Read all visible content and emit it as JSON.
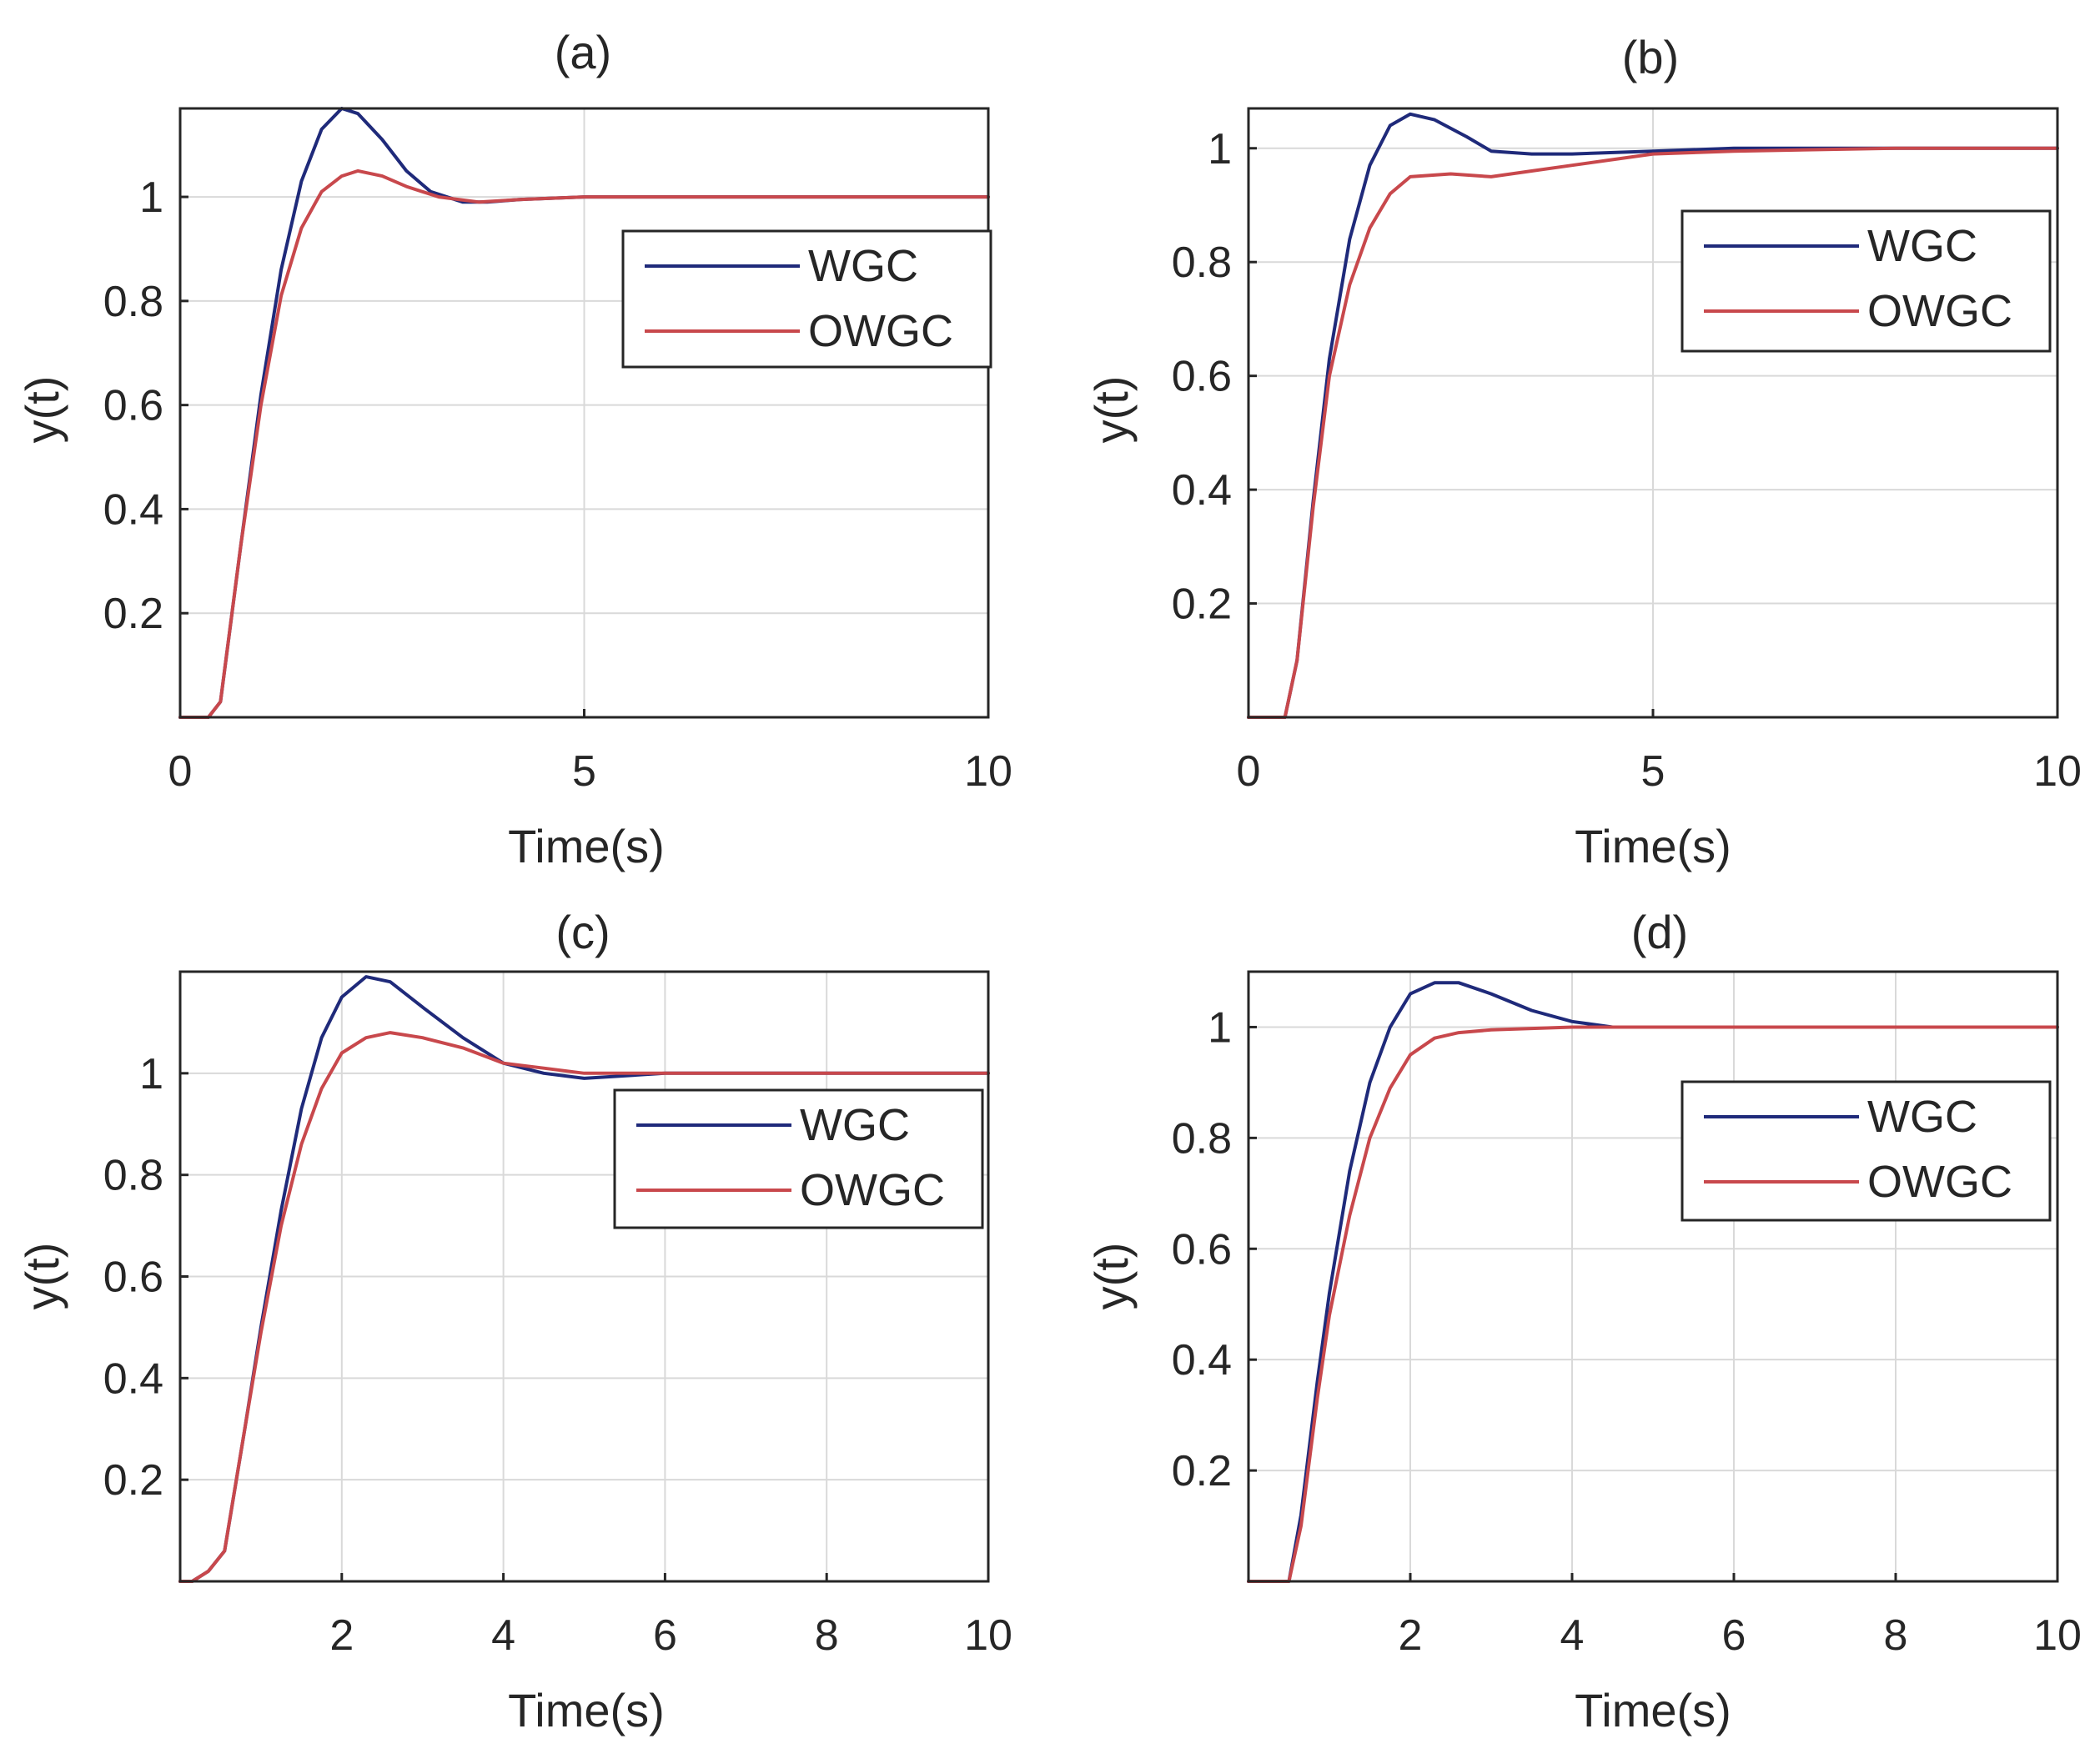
{
  "chart_data": [
    {
      "type": "line",
      "title": "(a)",
      "xlabel": "Time(s)",
      "ylabel": "y(t)",
      "xlim": [
        0,
        10
      ],
      "ylim": [
        0,
        1.17
      ],
      "xticks": [
        0,
        5,
        10
      ],
      "xtick_labels": [
        "0",
        "5",
        "10"
      ],
      "yticks": [
        0.2,
        0.4,
        0.6,
        0.8,
        1
      ],
      "ytick_labels": [
        "0.2",
        "0.4",
        "0.6",
        "0.8",
        "1"
      ],
      "grid": true,
      "legend": "upper-right",
      "series": [
        {
          "name": "WGC",
          "color": "#1f2a7a",
          "x": [
            0,
            0.35,
            0.5,
            0.75,
            1.0,
            1.25,
            1.5,
            1.75,
            2.0,
            2.2,
            2.5,
            2.8,
            3.1,
            3.5,
            3.8,
            4.2,
            5.0,
            6.0,
            8.0,
            10.0
          ],
          "y": [
            0,
            0,
            0.03,
            0.33,
            0.62,
            0.86,
            1.03,
            1.13,
            1.17,
            1.16,
            1.11,
            1.05,
            1.01,
            0.99,
            0.99,
            0.995,
            1.0,
            1.0,
            1.0,
            1.0
          ]
        },
        {
          "name": "OWGC",
          "color": "#c8484c",
          "x": [
            0,
            0.35,
            0.5,
            0.75,
            1.0,
            1.25,
            1.5,
            1.75,
            2.0,
            2.2,
            2.5,
            2.8,
            3.2,
            3.7,
            4.2,
            5.0,
            6.0,
            8.0,
            10.0
          ],
          "y": [
            0,
            0,
            0.03,
            0.33,
            0.6,
            0.81,
            0.94,
            1.01,
            1.04,
            1.05,
            1.04,
            1.02,
            1.0,
            0.99,
            0.995,
            1.0,
            1.0,
            1.0,
            1.0
          ]
        }
      ]
    },
    {
      "type": "line",
      "title": "(b)",
      "xlabel": "Time(s)",
      "ylabel": "y(t)",
      "xlim": [
        0,
        10
      ],
      "ylim": [
        0,
        1.07
      ],
      "xticks": [
        0,
        5,
        10
      ],
      "xtick_labels": [
        "0",
        "5",
        "10"
      ],
      "yticks": [
        0.2,
        0.4,
        0.6,
        0.8,
        1
      ],
      "ytick_labels": [
        "0.2",
        "0.4",
        "0.6",
        "0.8",
        "1"
      ],
      "grid": true,
      "legend": "upper-right",
      "series": [
        {
          "name": "WGC",
          "color": "#1f2a7a",
          "x": [
            0,
            0.45,
            0.6,
            0.8,
            1.0,
            1.25,
            1.5,
            1.75,
            2.0,
            2.3,
            2.7,
            3.0,
            3.5,
            4.0,
            5.0,
            6.0,
            8.0,
            10.0
          ],
          "y": [
            0,
            0,
            0.1,
            0.38,
            0.63,
            0.84,
            0.97,
            1.04,
            1.06,
            1.05,
            1.02,
            0.995,
            0.99,
            0.99,
            0.995,
            1.0,
            1.0,
            1.0
          ]
        },
        {
          "name": "OWGC",
          "color": "#c8484c",
          "x": [
            0,
            0.45,
            0.6,
            0.8,
            1.0,
            1.25,
            1.5,
            1.75,
            2.0,
            2.5,
            3.0,
            3.5,
            4.0,
            4.5,
            5.0,
            6.0,
            8.0,
            10.0
          ],
          "y": [
            0,
            0,
            0.1,
            0.37,
            0.6,
            0.76,
            0.86,
            0.92,
            0.95,
            0.955,
            0.95,
            0.96,
            0.97,
            0.98,
            0.99,
            0.995,
            1.0,
            1.0
          ]
        }
      ]
    },
    {
      "type": "line",
      "title": "(c)",
      "xlabel": "Time(s)",
      "ylabel": "y(t)",
      "xlim": [
        0,
        10
      ],
      "ylim": [
        0,
        1.2
      ],
      "xticks": [
        2,
        4,
        6,
        8,
        10
      ],
      "xtick_labels": [
        "2",
        "4",
        "6",
        "8",
        "10"
      ],
      "yticks": [
        0.2,
        0.4,
        0.6,
        0.8,
        1
      ],
      "ytick_labels": [
        "0.2",
        "0.4",
        "0.6",
        "0.8",
        "1"
      ],
      "grid": true,
      "legend": "upper-right",
      "series": [
        {
          "name": "WGC",
          "color": "#1f2a7a",
          "x": [
            0,
            0.15,
            0.35,
            0.55,
            0.8,
            1.0,
            1.25,
            1.5,
            1.75,
            2.0,
            2.3,
            2.6,
            3.0,
            3.5,
            4.0,
            4.5,
            5.0,
            6.0,
            8.0,
            10.0
          ],
          "y": [
            0,
            0.0,
            0.02,
            0.06,
            0.3,
            0.5,
            0.73,
            0.93,
            1.07,
            1.15,
            1.19,
            1.18,
            1.13,
            1.07,
            1.02,
            1.0,
            0.99,
            1.0,
            1.0,
            1.0
          ]
        },
        {
          "name": "OWGC",
          "color": "#c8484c",
          "x": [
            0,
            0.15,
            0.35,
            0.55,
            0.8,
            1.0,
            1.25,
            1.5,
            1.75,
            2.0,
            2.3,
            2.6,
            3.0,
            3.5,
            4.0,
            4.5,
            5.0,
            6.0,
            8.0,
            10.0
          ],
          "y": [
            0,
            0.0,
            0.02,
            0.06,
            0.3,
            0.49,
            0.7,
            0.86,
            0.97,
            1.04,
            1.07,
            1.08,
            1.07,
            1.05,
            1.02,
            1.01,
            1.0,
            1.0,
            1.0,
            1.0
          ]
        }
      ]
    },
    {
      "type": "line",
      "title": "(d)",
      "xlabel": "Time(s)",
      "ylabel": "y(t)",
      "xlim": [
        0,
        10
      ],
      "ylim": [
        0,
        1.1
      ],
      "xticks": [
        2,
        4,
        6,
        8,
        10
      ],
      "xtick_labels": [
        "2",
        "4",
        "6",
        "8",
        "10"
      ],
      "yticks": [
        0.2,
        0.4,
        0.6,
        0.8,
        1
      ],
      "ytick_labels": [
        "0.2",
        "0.4",
        "0.6",
        "0.8",
        "1"
      ],
      "grid": true,
      "legend": "upper-right",
      "series": [
        {
          "name": "WGC",
          "color": "#1f2a7a",
          "x": [
            0,
            0.5,
            0.65,
            0.85,
            1.0,
            1.25,
            1.5,
            1.75,
            2.0,
            2.3,
            2.6,
            3.0,
            3.5,
            4.0,
            4.5,
            5.0,
            6.0,
            8.0,
            10.0
          ],
          "y": [
            0,
            0,
            0.12,
            0.36,
            0.52,
            0.74,
            0.9,
            1.0,
            1.06,
            1.08,
            1.08,
            1.06,
            1.03,
            1.01,
            1.0,
            1.0,
            1.0,
            1.0,
            1.0
          ]
        },
        {
          "name": "OWGC",
          "color": "#c8484c",
          "x": [
            0,
            0.5,
            0.65,
            0.85,
            1.0,
            1.25,
            1.5,
            1.75,
            2.0,
            2.3,
            2.6,
            3.0,
            4.0,
            5.0,
            6.0,
            8.0,
            10.0
          ],
          "y": [
            0,
            0,
            0.1,
            0.33,
            0.48,
            0.66,
            0.8,
            0.89,
            0.95,
            0.98,
            0.99,
            0.995,
            1.0,
            1.0,
            1.0,
            1.0,
            1.0
          ]
        }
      ]
    }
  ]
}
